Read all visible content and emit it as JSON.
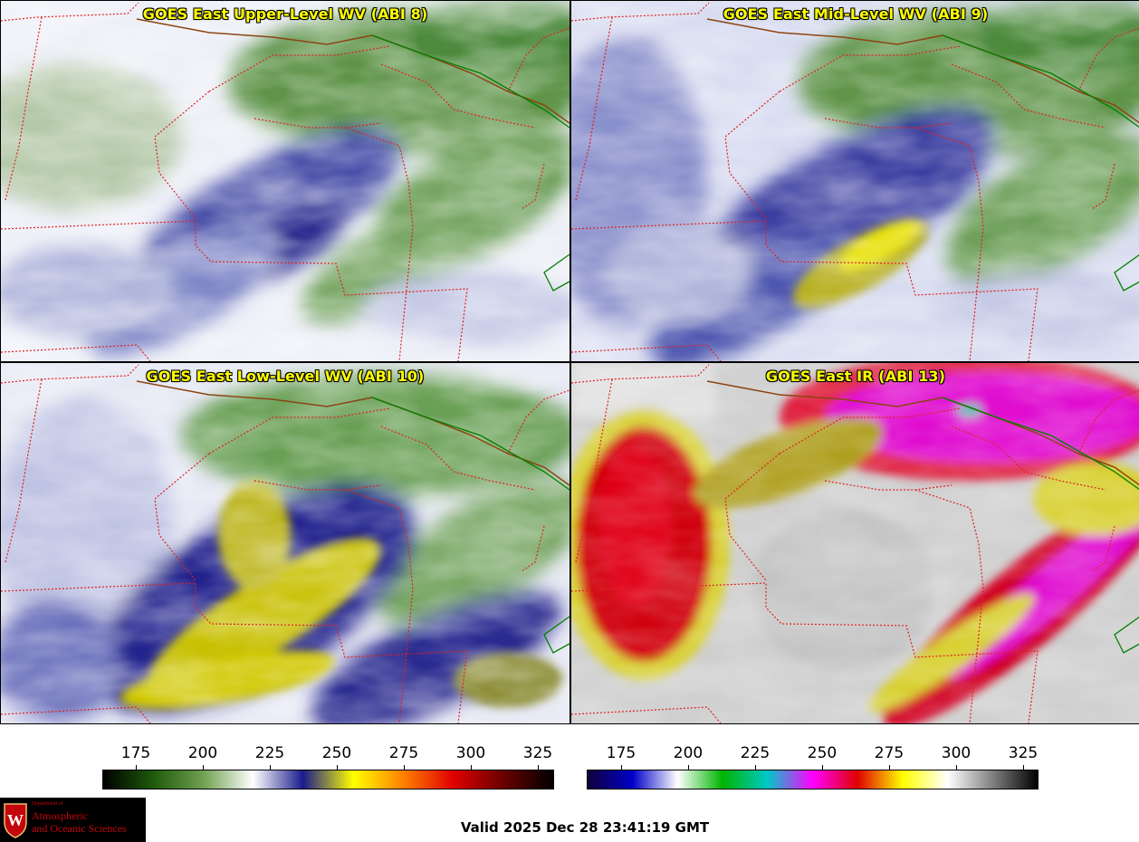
{
  "panels": [
    {
      "title": "GOES East Upper-Level WV (ABI 8)"
    },
    {
      "title": "GOES East Mid-Level WV (ABI 9)"
    },
    {
      "title": "GOES East Low-Level WV (ABI 10)"
    },
    {
      "title": "GOES East IR (ABI 13)"
    }
  ],
  "colorbar_wv": {
    "ticks": [
      "175",
      "200",
      "225",
      "250",
      "275",
      "300",
      "325"
    ],
    "colors": [
      "#000000",
      "#1e5a0a",
      "#6fa050",
      "#ffffff",
      "#1b1b8c",
      "#ffff00",
      "#ff8000",
      "#e00000",
      "#6a0000",
      "#000000"
    ]
  },
  "colorbar_ir": {
    "ticks": [
      "175",
      "200",
      "225",
      "250",
      "275",
      "300",
      "325"
    ],
    "colors": [
      "#10003a",
      "#0000c8",
      "#ffffff",
      "#00b400",
      "#00c8c8",
      "#ff00ff",
      "#e00000",
      "#ffff00",
      "#ffffff",
      "#808080",
      "#000000"
    ]
  },
  "logo": {
    "dept": "Department of",
    "line1": "Atmospheric",
    "line2": "and Oceanic Sciences"
  },
  "valid": "Valid 2025 Dec 28 23:41:19 GMT",
  "colors": {
    "state_border": "#e02020",
    "country_border": "#008000",
    "coast": "#8b4513"
  }
}
